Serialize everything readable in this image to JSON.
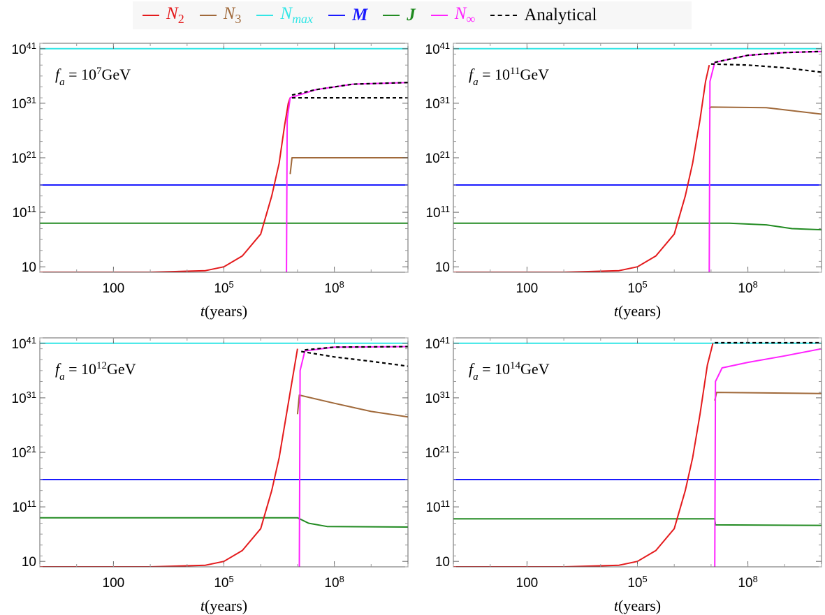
{
  "legend": [
    {
      "label": "N₂",
      "color": "#e41a1c",
      "style": "solid"
    },
    {
      "label": "N₃",
      "color": "#a0693a",
      "style": "solid"
    },
    {
      "label": "Nmax",
      "color": "#33e6e6",
      "style": "solid"
    },
    {
      "label": "M",
      "color": "#1a1aff",
      "style": "solid"
    },
    {
      "label": "J",
      "color": "#228b22",
      "style": "solid"
    },
    {
      "label": "N∞",
      "color": "#ff22ff",
      "style": "solid"
    },
    {
      "label": "Analytical",
      "color": "#000000",
      "style": "dashed"
    }
  ],
  "chart_data": [
    {
      "type": "line",
      "annotation": "fa = 10^7 GeV",
      "xlabel": "t(years)",
      "xscale": "log",
      "yscale": "log",
      "x_ticks": [
        "100",
        "10^5",
        "10^8"
      ],
      "y_ticks": [
        "10",
        "10^11",
        "10^21",
        "10^31",
        "10^41"
      ],
      "xlim_log10": [
        0,
        10
      ],
      "ylim_log10": [
        0,
        42
      ],
      "series": [
        {
          "name": "N₂",
          "points_log10": [
            [
              0,
              0
            ],
            [
              3,
              0
            ],
            [
              4.5,
              0.3
            ],
            [
              5,
              1
            ],
            [
              5.5,
              3
            ],
            [
              6,
              7
            ],
            [
              6.3,
              14
            ],
            [
              6.5,
              20
            ],
            [
              6.65,
              27
            ],
            [
              6.75,
              31
            ],
            [
              6.8,
              32
            ]
          ]
        },
        {
          "name": "N₃",
          "points_log10": [
            [
              6.8,
              18
            ],
            [
              6.85,
              21
            ],
            [
              10,
              21
            ]
          ]
        },
        {
          "name": "Nmax",
          "points_log10": [
            [
              0,
              41
            ],
            [
              10,
              41
            ]
          ]
        },
        {
          "name": "M",
          "points_log10": [
            [
              0,
              16
            ],
            [
              10,
              16
            ]
          ]
        },
        {
          "name": "J",
          "points_log10": [
            [
              0,
              9
            ],
            [
              10,
              9
            ]
          ]
        },
        {
          "name": "N∞",
          "points_log10": [
            [
              6.7,
              0
            ],
            [
              6.72,
              28
            ],
            [
              6.8,
              32
            ],
            [
              7.5,
              33.5
            ],
            [
              8.5,
              34.5
            ],
            [
              10,
              34.8
            ]
          ]
        },
        {
          "name": "Analytical",
          "points_log10": [
            [
              6.85,
              32
            ],
            [
              10,
              32
            ]
          ]
        },
        {
          "name": "Analytical",
          "points_log10": [
            [
              6.85,
              32.5
            ],
            [
              7.5,
              33.5
            ],
            [
              8.5,
              34.5
            ],
            [
              10,
              34.8
            ]
          ]
        }
      ]
    },
    {
      "type": "line",
      "annotation": "fa = 10^11 GeV",
      "xlabel": "t(years)",
      "xscale": "log",
      "yscale": "log",
      "x_ticks": [
        "100",
        "10^5",
        "10^8"
      ],
      "y_ticks": [
        "10",
        "10^11",
        "10^21",
        "10^31",
        "10^41"
      ],
      "xlim_log10": [
        0,
        10
      ],
      "ylim_log10": [
        0,
        42
      ],
      "series": [
        {
          "name": "N₂",
          "points_log10": [
            [
              0,
              0
            ],
            [
              3,
              0
            ],
            [
              4.5,
              0.3
            ],
            [
              5,
              1
            ],
            [
              5.5,
              3
            ],
            [
              6,
              7
            ],
            [
              6.3,
              14
            ],
            [
              6.5,
              20
            ],
            [
              6.7,
              28
            ],
            [
              6.85,
              35
            ],
            [
              6.95,
              38
            ]
          ]
        },
        {
          "name": "N₃",
          "points_log10": [
            [
              6.95,
              30
            ],
            [
              7,
              30.3
            ],
            [
              8.5,
              30.2
            ],
            [
              10,
              29
            ]
          ]
        },
        {
          "name": "Nmax",
          "points_log10": [
            [
              0,
              41
            ],
            [
              10,
              41
            ]
          ]
        },
        {
          "name": "M",
          "points_log10": [
            [
              0,
              16
            ],
            [
              10,
              16
            ]
          ]
        },
        {
          "name": "J",
          "points_log10": [
            [
              0,
              9
            ],
            [
              7.5,
              9
            ],
            [
              8.5,
              8.7
            ],
            [
              9.2,
              8
            ],
            [
              10,
              7.8
            ]
          ]
        },
        {
          "name": "N∞",
          "points_log10": [
            [
              6.95,
              0
            ],
            [
              6.97,
              35
            ],
            [
              7.1,
              38.5
            ],
            [
              8,
              39.8
            ],
            [
              9,
              40.3
            ],
            [
              10,
              40.5
            ]
          ]
        },
        {
          "name": "Analytical",
          "points_log10": [
            [
              7,
              38.2
            ],
            [
              8,
              38
            ],
            [
              9,
              37.5
            ],
            [
              10,
              36.7
            ]
          ]
        },
        {
          "name": "Analytical",
          "points_log10": [
            [
              7.1,
              38.5
            ],
            [
              8,
              39.8
            ],
            [
              9,
              40.3
            ],
            [
              10,
              40.5
            ]
          ]
        }
      ]
    },
    {
      "type": "line",
      "annotation": "fa = 10^12 GeV",
      "xlabel": "t(years)",
      "xscale": "log",
      "yscale": "log",
      "x_ticks": [
        "100",
        "10^5",
        "10^8"
      ],
      "y_ticks": [
        "10",
        "10^11",
        "10^21",
        "10^31",
        "10^41"
      ],
      "xlim_log10": [
        0,
        10
      ],
      "ylim_log10": [
        0,
        42
      ],
      "series": [
        {
          "name": "N₂",
          "points_log10": [
            [
              0,
              0
            ],
            [
              3,
              0
            ],
            [
              4.5,
              0.3
            ],
            [
              5,
              1
            ],
            [
              5.5,
              3
            ],
            [
              6,
              7
            ],
            [
              6.3,
              14
            ],
            [
              6.5,
              20
            ],
            [
              6.7,
              28
            ],
            [
              6.9,
              36
            ],
            [
              7,
              40
            ]
          ]
        },
        {
          "name": "N₃",
          "points_log10": [
            [
              7,
              28
            ],
            [
              7.05,
              31.5
            ],
            [
              8,
              30
            ],
            [
              9,
              28.5
            ],
            [
              10,
              27.5
            ]
          ]
        },
        {
          "name": "Nmax",
          "points_log10": [
            [
              0,
              41
            ],
            [
              10,
              41
            ]
          ]
        },
        {
          "name": "M",
          "points_log10": [
            [
              0,
              16
            ],
            [
              10,
              16
            ]
          ]
        },
        {
          "name": "J",
          "points_log10": [
            [
              0,
              9
            ],
            [
              7,
              9
            ],
            [
              7.3,
              8
            ],
            [
              7.8,
              7.4
            ],
            [
              10,
              7.3
            ]
          ]
        },
        {
          "name": "N∞",
          "points_log10": [
            [
              7.05,
              0
            ],
            [
              7.07,
              36
            ],
            [
              7.2,
              39.6
            ],
            [
              8,
              40.3
            ],
            [
              10,
              40.4
            ]
          ]
        },
        {
          "name": "Analytical",
          "points_log10": [
            [
              7.1,
              39.5
            ],
            [
              8,
              38.5
            ],
            [
              9,
              37.7
            ],
            [
              10,
              36.8
            ]
          ]
        },
        {
          "name": "Analytical",
          "points_log10": [
            [
              7.2,
              39.8
            ],
            [
              8,
              40.3
            ],
            [
              10,
              40.4
            ]
          ]
        }
      ]
    },
    {
      "type": "line",
      "annotation": "fa = 10^14 GeV",
      "xlabel": "t(years)",
      "xscale": "log",
      "yscale": "log",
      "x_ticks": [
        "100",
        "10^5",
        "10^8"
      ],
      "y_ticks": [
        "10",
        "10^11",
        "10^21",
        "10^31",
        "10^41"
      ],
      "xlim_log10": [
        0,
        10
      ],
      "ylim_log10": [
        0,
        42
      ],
      "series": [
        {
          "name": "N₂",
          "points_log10": [
            [
              0,
              0
            ],
            [
              3,
              0
            ],
            [
              4.5,
              0.3
            ],
            [
              5,
              1
            ],
            [
              5.5,
              3
            ],
            [
              6,
              7
            ],
            [
              6.3,
              14
            ],
            [
              6.5,
              20
            ],
            [
              6.7,
              28
            ],
            [
              6.9,
              37
            ],
            [
              7.05,
              41
            ]
          ]
        },
        {
          "name": "N₃",
          "points_log10": [
            [
              7.1,
              30.5
            ],
            [
              7.15,
              32
            ],
            [
              10,
              31.8
            ]
          ]
        },
        {
          "name": "Nmax",
          "points_log10": [
            [
              0,
              41
            ],
            [
              10,
              41
            ]
          ]
        },
        {
          "name": "M",
          "points_log10": [
            [
              0,
              16
            ],
            [
              10,
              16
            ]
          ]
        },
        {
          "name": "J",
          "points_log10": [
            [
              0,
              8.8
            ],
            [
              7.1,
              8.8
            ],
            [
              7.12,
              7.7
            ],
            [
              10,
              7.6
            ]
          ]
        },
        {
          "name": "N∞",
          "points_log10": [
            [
              7.1,
              0
            ],
            [
              7.12,
              34
            ],
            [
              7.3,
              36.5
            ],
            [
              8,
              37.5
            ],
            [
              9,
              38.7
            ],
            [
              10,
              40
            ]
          ]
        },
        {
          "name": "Analytical",
          "points_log10": [
            [
              7.1,
              41.1
            ],
            [
              10,
              41.1
            ]
          ]
        }
      ]
    }
  ]
}
